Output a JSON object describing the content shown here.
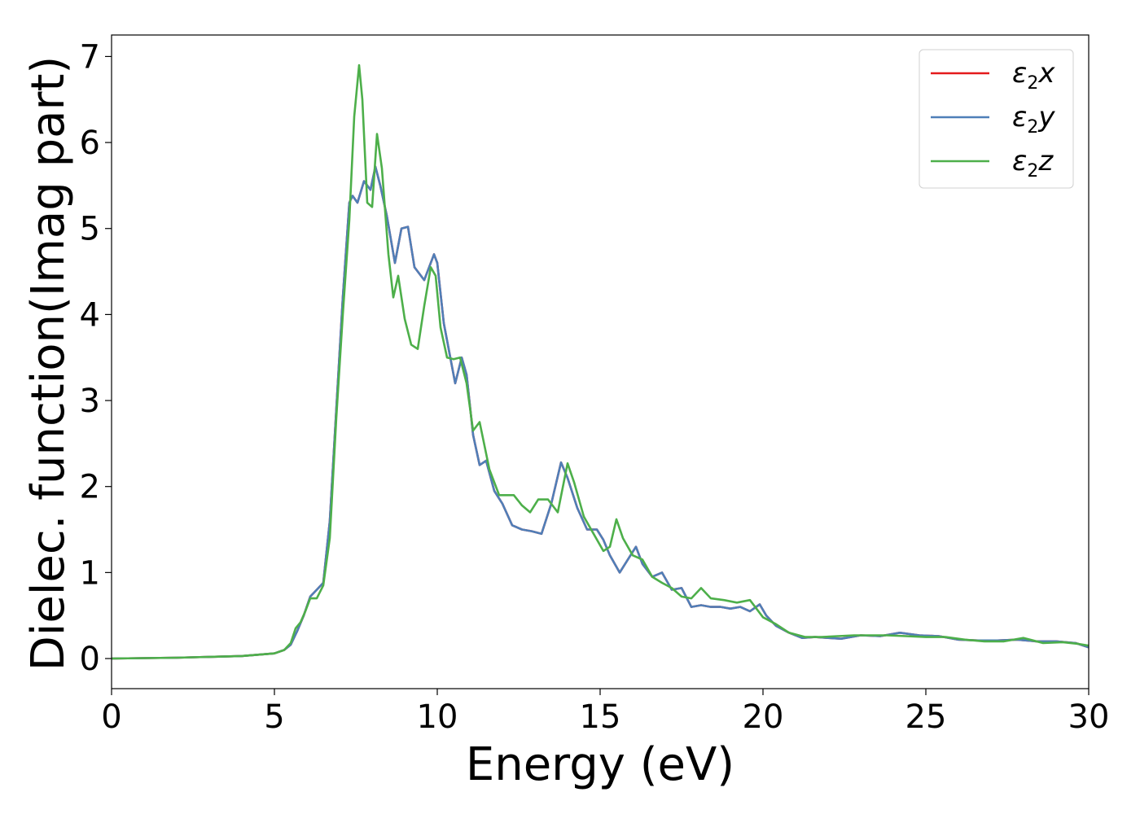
{
  "chart_data": {
    "type": "line",
    "title": "",
    "xlabel": "Energy (eV)",
    "ylabel": "Dielec. function(Imag part)",
    "xlim": [
      0,
      30
    ],
    "ylim": [
      -0.35,
      7.25
    ],
    "xticks": [
      0,
      5,
      10,
      15,
      20,
      25,
      30
    ],
    "yticks": [
      0,
      1,
      2,
      3,
      4,
      5,
      6,
      7
    ],
    "grid": false,
    "legend_position": "top-right",
    "series": [
      {
        "name": "x",
        "sub": "2",
        "prefix": "ε",
        "color": "#e41a1c",
        "x": [
          0,
          2,
          4,
          5,
          5.3,
          5.5,
          5.7,
          5.9,
          6.1,
          6.3,
          6.5,
          6.7,
          6.9,
          7.1,
          7.3,
          7.4,
          7.55,
          7.75,
          7.95,
          8.1,
          8.25,
          8.45,
          8.7,
          8.9,
          9.1,
          9.3,
          9.6,
          9.9,
          10.0,
          10.2,
          10.4,
          10.55,
          10.75,
          10.9,
          11.1,
          11.3,
          11.5,
          11.75,
          12.0,
          12.3,
          12.6,
          12.9,
          13.2,
          13.5,
          13.8,
          14.0,
          14.3,
          14.6,
          14.9,
          15.1,
          15.3,
          15.6,
          15.9,
          16.1,
          16.3,
          16.6,
          16.9,
          17.2,
          17.5,
          17.8,
          18.1,
          18.4,
          18.7,
          19.0,
          19.3,
          19.6,
          19.9,
          20.1,
          20.4,
          20.8,
          21.2,
          21.6,
          22.0,
          22.4,
          23.0,
          23.6,
          24.2,
          24.8,
          25.4,
          26.0,
          26.6,
          27.2,
          27.8,
          28.4,
          29.0,
          29.6,
          30.0
        ],
        "y": [
          0.0,
          0.01,
          0.03,
          0.06,
          0.1,
          0.16,
          0.32,
          0.5,
          0.72,
          0.8,
          0.88,
          1.6,
          2.9,
          4.2,
          5.3,
          5.38,
          5.3,
          5.55,
          5.45,
          5.72,
          5.5,
          5.15,
          4.6,
          5.0,
          5.02,
          4.55,
          4.4,
          4.7,
          4.6,
          3.9,
          3.5,
          3.2,
          3.5,
          3.3,
          2.6,
          2.25,
          2.3,
          1.95,
          1.8,
          1.55,
          1.5,
          1.48,
          1.45,
          1.8,
          2.28,
          2.1,
          1.75,
          1.5,
          1.5,
          1.38,
          1.2,
          1.0,
          1.18,
          1.3,
          1.1,
          0.95,
          1.0,
          0.8,
          0.82,
          0.6,
          0.62,
          0.6,
          0.6,
          0.58,
          0.6,
          0.55,
          0.63,
          0.5,
          0.38,
          0.3,
          0.24,
          0.25,
          0.24,
          0.23,
          0.27,
          0.26,
          0.3,
          0.27,
          0.26,
          0.22,
          0.21,
          0.21,
          0.22,
          0.2,
          0.2,
          0.18,
          0.13
        ]
      },
      {
        "name": "y",
        "sub": "2",
        "prefix": "ε",
        "color": "#4f7fb8",
        "x": [
          0,
          2,
          4,
          5,
          5.3,
          5.5,
          5.7,
          5.9,
          6.1,
          6.3,
          6.5,
          6.7,
          6.9,
          7.1,
          7.3,
          7.4,
          7.55,
          7.75,
          7.95,
          8.1,
          8.25,
          8.45,
          8.7,
          8.9,
          9.1,
          9.3,
          9.6,
          9.9,
          10.0,
          10.2,
          10.4,
          10.55,
          10.75,
          10.9,
          11.1,
          11.3,
          11.5,
          11.75,
          12.0,
          12.3,
          12.6,
          12.9,
          13.2,
          13.5,
          13.8,
          14.0,
          14.3,
          14.6,
          14.9,
          15.1,
          15.3,
          15.6,
          15.9,
          16.1,
          16.3,
          16.6,
          16.9,
          17.2,
          17.5,
          17.8,
          18.1,
          18.4,
          18.7,
          19.0,
          19.3,
          19.6,
          19.9,
          20.1,
          20.4,
          20.8,
          21.2,
          21.6,
          22.0,
          22.4,
          23.0,
          23.6,
          24.2,
          24.8,
          25.4,
          26.0,
          26.6,
          27.2,
          27.8,
          28.4,
          29.0,
          29.6,
          30.0
        ],
        "y": [
          0.0,
          0.01,
          0.03,
          0.06,
          0.1,
          0.16,
          0.32,
          0.5,
          0.72,
          0.8,
          0.88,
          1.6,
          2.9,
          4.2,
          5.3,
          5.38,
          5.3,
          5.55,
          5.45,
          5.72,
          5.5,
          5.15,
          4.6,
          5.0,
          5.02,
          4.55,
          4.4,
          4.7,
          4.6,
          3.9,
          3.5,
          3.2,
          3.5,
          3.3,
          2.6,
          2.25,
          2.3,
          1.95,
          1.8,
          1.55,
          1.5,
          1.48,
          1.45,
          1.8,
          2.28,
          2.1,
          1.75,
          1.5,
          1.5,
          1.38,
          1.2,
          1.0,
          1.18,
          1.3,
          1.1,
          0.95,
          1.0,
          0.8,
          0.82,
          0.6,
          0.62,
          0.6,
          0.6,
          0.58,
          0.6,
          0.55,
          0.63,
          0.5,
          0.38,
          0.3,
          0.24,
          0.25,
          0.24,
          0.23,
          0.27,
          0.26,
          0.3,
          0.27,
          0.26,
          0.22,
          0.21,
          0.21,
          0.22,
          0.2,
          0.2,
          0.18,
          0.13
        ]
      },
      {
        "name": "z",
        "sub": "2",
        "prefix": "ε",
        "color": "#4daf4a",
        "x": [
          0,
          2,
          4,
          5,
          5.3,
          5.5,
          5.65,
          5.8,
          5.95,
          6.1,
          6.3,
          6.5,
          6.7,
          6.9,
          7.1,
          7.3,
          7.45,
          7.6,
          7.7,
          7.85,
          8.0,
          8.15,
          8.3,
          8.5,
          8.65,
          8.8,
          9.0,
          9.2,
          9.4,
          9.6,
          9.8,
          9.95,
          10.1,
          10.3,
          10.5,
          10.7,
          10.9,
          11.1,
          11.3,
          11.6,
          11.9,
          12.1,
          12.35,
          12.6,
          12.85,
          13.1,
          13.4,
          13.7,
          14.0,
          14.2,
          14.5,
          14.8,
          15.1,
          15.3,
          15.5,
          15.7,
          16.0,
          16.3,
          16.6,
          16.9,
          17.2,
          17.5,
          17.8,
          18.1,
          18.4,
          18.8,
          19.2,
          19.6,
          20.0,
          20.4,
          20.8,
          21.3,
          21.8,
          22.3,
          22.8,
          23.3,
          23.8,
          24.4,
          25.0,
          25.6,
          26.2,
          26.8,
          27.4,
          28.0,
          28.6,
          29.2,
          29.7,
          30.0
        ],
        "y": [
          0.0,
          0.01,
          0.03,
          0.06,
          0.1,
          0.18,
          0.35,
          0.42,
          0.55,
          0.7,
          0.7,
          0.85,
          1.4,
          2.8,
          4.0,
          5.1,
          6.3,
          6.9,
          6.5,
          5.3,
          5.25,
          6.1,
          5.7,
          4.7,
          4.2,
          4.45,
          3.95,
          3.65,
          3.6,
          4.1,
          4.55,
          4.45,
          3.85,
          3.5,
          3.48,
          3.5,
          3.2,
          2.65,
          2.75,
          2.2,
          1.9,
          1.9,
          1.9,
          1.78,
          1.7,
          1.85,
          1.85,
          1.7,
          2.27,
          2.05,
          1.65,
          1.45,
          1.25,
          1.3,
          1.62,
          1.4,
          1.2,
          1.15,
          0.95,
          0.88,
          0.82,
          0.72,
          0.7,
          0.82,
          0.7,
          0.68,
          0.65,
          0.68,
          0.48,
          0.4,
          0.3,
          0.25,
          0.25,
          0.26,
          0.27,
          0.27,
          0.27,
          0.26,
          0.25,
          0.25,
          0.22,
          0.2,
          0.2,
          0.24,
          0.18,
          0.19,
          0.17,
          0.15
        ]
      }
    ]
  }
}
